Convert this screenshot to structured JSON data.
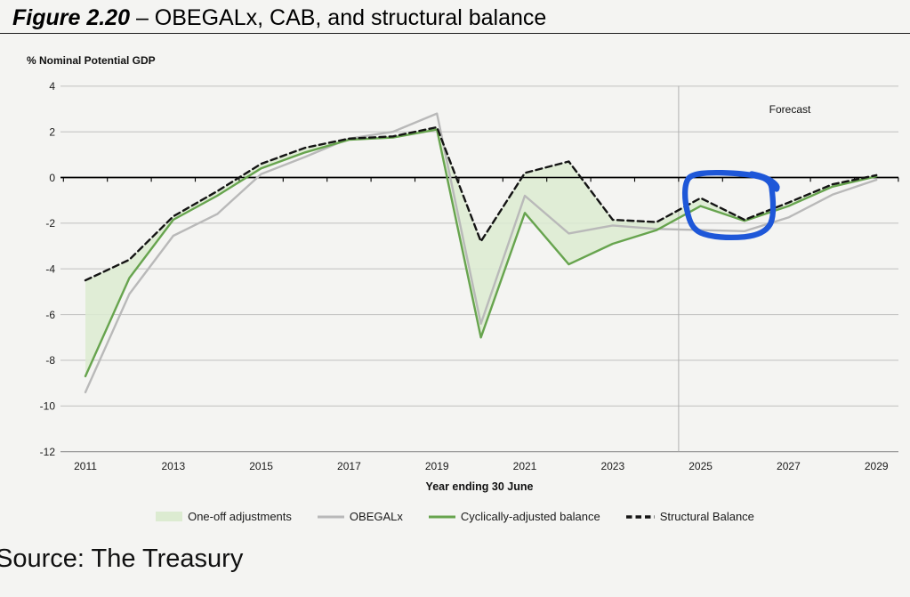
{
  "title": {
    "figure_label": "Figure 2.20",
    "separator": " – ",
    "text": "OBEGALx, CAB, and structural balance"
  },
  "y_axis_unit": "% Nominal Potential GDP",
  "forecast_label": "Forecast",
  "x_axis_title": "Year ending 30 June",
  "source": "Source: The Treasury",
  "legend": [
    {
      "label": "One-off adjustments",
      "swatch": "area",
      "color": "#dcebd1"
    },
    {
      "label": "OBEGALx",
      "swatch": "line",
      "color": "#b9b9b9"
    },
    {
      "label": "Cyclically-adjusted balance",
      "swatch": "line",
      "color": "#67a44e"
    },
    {
      "label": "Structural Balance",
      "swatch": "dashed-line",
      "color": "#141414"
    }
  ],
  "chart_data": {
    "type": "line",
    "title": "Figure 2.20 – OBEGALx, CAB, and structural balance",
    "ylabel": "% Nominal Potential GDP",
    "xlabel": "Year ending 30 June",
    "ylim": [
      -12,
      4
    ],
    "ytick_step": 2,
    "ytick_labels": [
      "4",
      "2",
      "0",
      "-2",
      "-4",
      "-6",
      "-8",
      "-10",
      "-12"
    ],
    "grid": "horizontal",
    "x": [
      2011,
      2012,
      2013,
      2014,
      2015,
      2016,
      2017,
      2018,
      2019,
      2020,
      2021,
      2022,
      2023,
      2024,
      2025,
      2026,
      2027,
      2028,
      2029
    ],
    "xtick_labels": [
      "2011",
      "2013",
      "2015",
      "2017",
      "2019",
      "2021",
      "2023",
      "2025",
      "2027",
      "2029"
    ],
    "series": [
      {
        "name": "OBEGALx",
        "style": "solid",
        "color": "#b9b9b9",
        "values": [
          -9.4,
          -5.1,
          -2.55,
          -1.6,
          0.15,
          0.9,
          1.7,
          2.0,
          2.8,
          -6.4,
          -0.8,
          -2.45,
          -2.1,
          -2.25,
          -2.3,
          -2.35,
          -1.75,
          -0.75,
          -0.1
        ]
      },
      {
        "name": "Cyclically-adjusted balance",
        "style": "solid",
        "color": "#67a44e",
        "values": [
          -8.7,
          -4.4,
          -1.85,
          -0.8,
          0.4,
          1.1,
          1.65,
          1.75,
          2.1,
          -7.0,
          -1.55,
          -3.8,
          -2.9,
          -2.3,
          -1.25,
          -1.9,
          -1.25,
          -0.4,
          0.05
        ]
      },
      {
        "name": "Structural Balance",
        "style": "dashed",
        "color": "#141414",
        "values": [
          -4.5,
          -3.6,
          -1.7,
          -0.6,
          0.6,
          1.3,
          1.7,
          1.8,
          2.2,
          -2.8,
          0.2,
          0.7,
          -1.85,
          -1.95,
          -0.9,
          -1.85,
          -1.1,
          -0.3,
          0.1
        ]
      }
    ],
    "band": {
      "name": "One-off adjustments",
      "between": [
        "Cyclically-adjusted balance",
        "Structural Balance"
      ],
      "color": "#dcebd1"
    },
    "forecast_divider_after_year": 2024,
    "annotation": {
      "type": "hand-drawn-circle",
      "color": "#1e57d8",
      "covers_years": [
        2025,
        2026
      ],
      "note": "blue pen loop circling the forecast dip of the structural balance and CAB lines"
    },
    "legend_position": "bottom"
  }
}
